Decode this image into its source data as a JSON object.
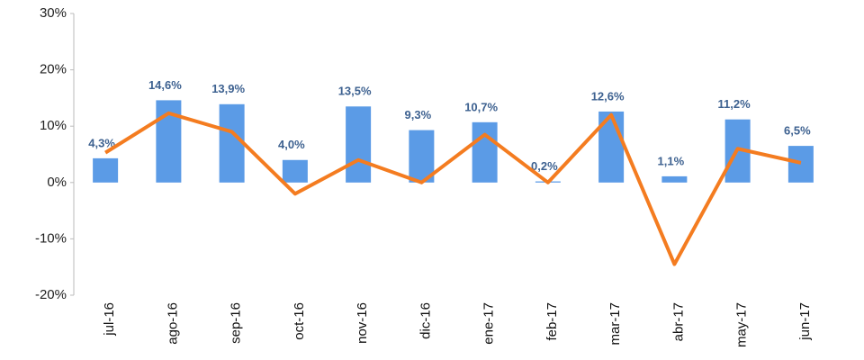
{
  "chart_data": {
    "type": "bar",
    "categories": [
      "jul-16",
      "ago-16",
      "sep-16",
      "oct-16",
      "nov-16",
      "dic-16",
      "ene-17",
      "feb-17",
      "mar-17",
      "abr-17",
      "may-17",
      "jun-17"
    ],
    "series": [
      {
        "type": "bar",
        "color": "#5b9be6",
        "values": [
          4.3,
          14.6,
          13.9,
          4.0,
          13.5,
          9.3,
          10.7,
          0.2,
          12.6,
          1.1,
          11.2,
          6.5
        ],
        "value_labels": [
          "4,3%",
          "14,6%",
          "13,9%",
          "4,0%",
          "13,5%",
          "9,3%",
          "10,7%",
          "0,2%",
          "12,6%",
          "1,1%",
          "11,2%",
          "6,5%"
        ]
      },
      {
        "type": "line",
        "color": "#f47c20",
        "values": [
          5.3,
          12.3,
          9.0,
          -2.0,
          4.0,
          0.0,
          8.5,
          0.0,
          12.0,
          -14.5,
          6.0,
          3.5
        ]
      }
    ],
    "ylim": [
      -20,
      30
    ],
    "yticks": [
      {
        "value": -20,
        "label": "-20%"
      },
      {
        "value": -10,
        "label": "-10%"
      },
      {
        "value": 0,
        "label": "0%"
      },
      {
        "value": 10,
        "label": "10%"
      },
      {
        "value": 20,
        "label": "20%"
      },
      {
        "value": 30,
        "label": "30%"
      }
    ],
    "negative_tick_color": "#ff0000",
    "grid": false
  }
}
